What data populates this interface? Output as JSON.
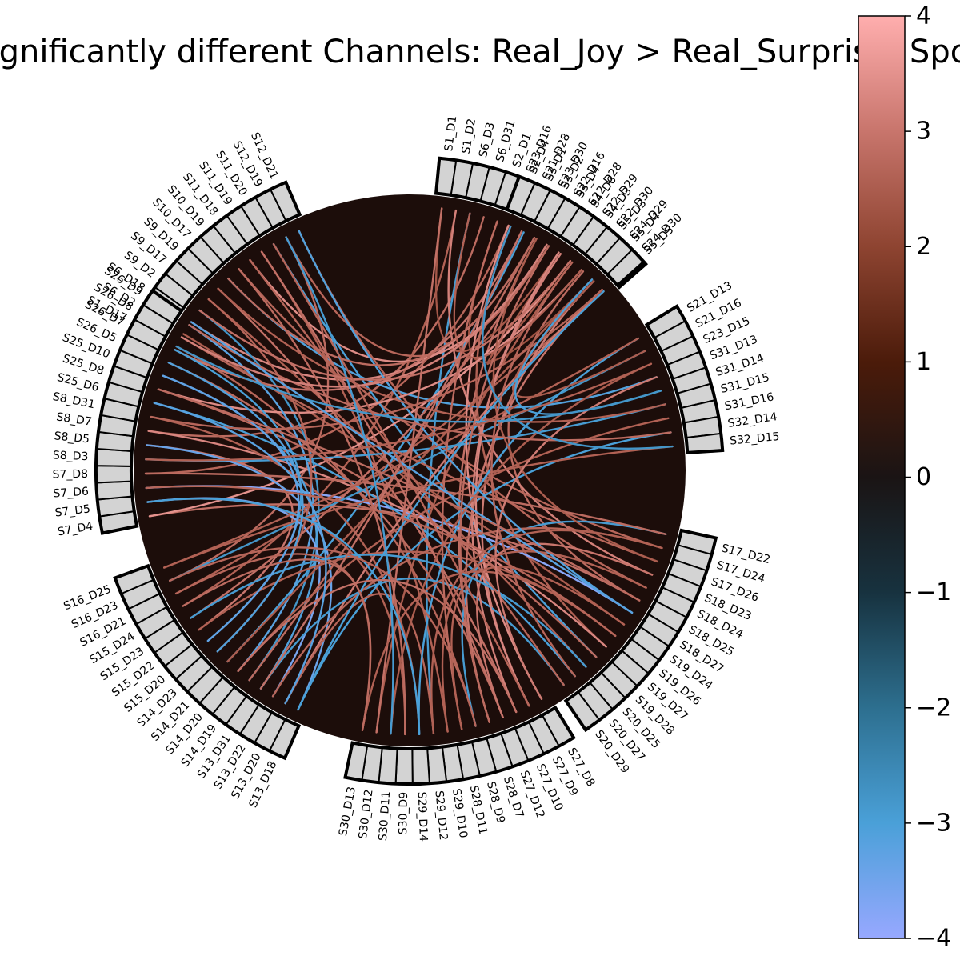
{
  "chart_data": {
    "type": "chord",
    "title": "Significantly different Channels: Real_Joy > Real_Surprise, Spot",
    "colorbar": {
      "min": -4,
      "max": 4,
      "ticks": [
        4,
        3,
        2,
        1,
        0,
        -1,
        -2,
        -3,
        -4
      ],
      "tick_labels": [
        "4",
        "3",
        "2",
        "1",
        "0",
        "−1",
        "−2",
        "−3",
        "−4"
      ],
      "colors": [
        {
          "v": -4,
          "c": "#97a8ff"
        },
        {
          "v": -3,
          "c": "#4aa0d8"
        },
        {
          "v": -2,
          "c": "#2d6f8f"
        },
        {
          "v": -1,
          "c": "#17323f"
        },
        {
          "v": 0,
          "c": "#1a1414"
        },
        {
          "v": 1,
          "c": "#4b1b0a"
        },
        {
          "v": 2,
          "c": "#8e4431"
        },
        {
          "v": 3,
          "c": "#c8756c"
        },
        {
          "v": 4,
          "c": "#ffaeae"
        }
      ]
    },
    "colors": {
      "disk": "#1c0d0a",
      "node_fill": "#d3d3d3",
      "node_edge": "#000000",
      "background": "#ffffff"
    },
    "groups": [
      {
        "start_deg": 83,
        "nodes": [
          "S1_D1",
          "S1_D2",
          "S6_D3",
          "S6_D31",
          "S2_D1",
          "S2_D4",
          "S3_D1",
          "S3_D2",
          "S3_D4",
          "S4_D6",
          "S4_D3",
          "S5_D3",
          "S5_D4",
          "S5_D5"
        ]
      },
      {
        "start_deg": 152,
        "nodes": [
          "S1_D17",
          "S6_D2",
          "S6_D18",
          "S9_D2",
          "S9_D17",
          "S9_D19",
          "S10_D17",
          "S10_D19",
          "S11_D18",
          "S11_D19",
          "S11_D20",
          "S12_D19",
          "S12_D21"
        ]
      },
      {
        "start_deg": 190,
        "nodes": [
          "S7_D4",
          "S7_D5",
          "S7_D6",
          "S7_D8",
          "S8_D3",
          "S8_D5",
          "S8_D7",
          "S8_D31",
          "S25_D6",
          "S25_D8",
          "S25_D10",
          "S26_D5",
          "S26_D7",
          "S26_D8",
          "S26_D9"
        ]
      },
      {
        "start_deg": 245,
        "nodes": [
          "S13_D18",
          "S13_D20",
          "S13_D22",
          "S13_D31",
          "S14_D19",
          "S14_D20",
          "S14_D21",
          "S14_D23",
          "S15_D20",
          "S15_D22",
          "S15_D23",
          "S15_D24",
          "S16_D21",
          "S16_D23",
          "S16_D25"
        ]
      },
      {
        "start_deg": 300,
        "nodes": [
          "S27_D8",
          "S27_D9",
          "S27_D10",
          "S27_D12",
          "S28_D7",
          "S28_D9",
          "S28_D11",
          "S29_D10",
          "S29_D12",
          "S29_D14",
          "S30_D9",
          "S30_D11",
          "S30_D12",
          "S30_D13"
        ]
      },
      {
        "start_deg": 346,
        "nodes": [
          "S17_D22",
          "S17_D24",
          "S17_D26",
          "S18_D23",
          "S18_D24",
          "S18_D25",
          "S18_D27",
          "S19_D24",
          "S19_D26",
          "S19_D27",
          "S19_D28",
          "S20_D25",
          "S20_D27",
          "S20_D29"
        ]
      },
      {
        "start_deg": 30,
        "nodes": [
          "S21_D13",
          "S21_D16",
          "S23_D15",
          "S31_D13",
          "S31_D14",
          "S31_D15",
          "S31_D16",
          "S32_D14",
          "S32_D15"
        ]
      },
      {
        "start_deg": 68,
        "nodes": [
          "S23_D16",
          "S21_D28",
          "S23_D30",
          "S22_D16",
          "S22_D28",
          "S22_D29",
          "S22_D30",
          "S24_D29",
          "S24_D30"
        ]
      }
    ],
    "edges": [
      {
        "a": "S5_D5",
        "b": "S16_D21",
        "v": 2.6
      },
      {
        "a": "S5_D4",
        "b": "S27_D9",
        "v": 3.1
      },
      {
        "a": "S5_D3",
        "b": "S18_D25",
        "v": 2.8
      },
      {
        "a": "S4_D3",
        "b": "S30_D12",
        "v": 2.5
      },
      {
        "a": "S4_D6",
        "b": "S22_D29",
        "v": 2.4
      },
      {
        "a": "S3_D4",
        "b": "S12_D19",
        "v": 2.7
      },
      {
        "a": "S3_D2",
        "b": "S28_D7",
        "v": 2.9
      },
      {
        "a": "S3_D1",
        "b": "S14_D21",
        "v": -3.0
      },
      {
        "a": "S2_D4",
        "b": "S19_D27",
        "v": 2.6
      },
      {
        "a": "S2_D1",
        "b": "S24_D29",
        "v": 2.3
      },
      {
        "a": "S6_D31",
        "b": "S8_D7",
        "v": 2.8
      },
      {
        "a": "S6_D3",
        "b": "S29_D12",
        "v": -2.9
      },
      {
        "a": "S1_D2",
        "b": "S15_D24",
        "v": 2.6
      },
      {
        "a": "S1_D1",
        "b": "S22_D28",
        "v": 2.4
      },
      {
        "a": "S1_D2",
        "b": "S18_D23",
        "v": 3.2
      },
      {
        "a": "S1_D17",
        "b": "S28_D9",
        "v": 2.7
      },
      {
        "a": "S6_D2",
        "b": "S19_D24",
        "v": 2.5
      },
      {
        "a": "S6_D18",
        "b": "S23_D30",
        "v": 3.3
      },
      {
        "a": "S9_D2",
        "b": "S14_D19",
        "v": -2.8
      },
      {
        "a": "S9_D17",
        "b": "S20_D25",
        "v": 2.6
      },
      {
        "a": "S9_D19",
        "b": "S27_D10",
        "v": 2.9
      },
      {
        "a": "S10_D17",
        "b": "S31_D13",
        "v": -3.1
      },
      {
        "a": "S10_D19",
        "b": "S17_D24",
        "v": 2.7
      },
      {
        "a": "S11_D18",
        "b": "S22_D16",
        "v": 3.4
      },
      {
        "a": "S11_D19",
        "b": "S29_D10",
        "v": 2.6
      },
      {
        "a": "S11_D20",
        "b": "S19_D28",
        "v": -3.0
      },
      {
        "a": "S12_D19",
        "b": "S16_D23",
        "v": 2.8
      },
      {
        "a": "S12_D21",
        "b": "S18_D24",
        "v": 2.7
      },
      {
        "a": "S7_D4",
        "b": "S18_D25",
        "v": 2.9
      },
      {
        "a": "S7_D4",
        "b": "S22_D29",
        "v": 3.5
      },
      {
        "a": "S7_D5",
        "b": "S30_D9",
        "v": 2.6
      },
      {
        "a": "S7_D6",
        "b": "S18_D27",
        "v": -3.8
      },
      {
        "a": "S7_D8",
        "b": "S23_D16",
        "v": 2.7
      },
      {
        "a": "S8_D3",
        "b": "S31_D15",
        "v": -2.9
      },
      {
        "a": "S8_D5",
        "b": "S15_D22",
        "v": 3.0
      },
      {
        "a": "S8_D7",
        "b": "S19_D27",
        "v": 3.3
      },
      {
        "a": "S8_D31",
        "b": "S29_D14",
        "v": 2.6
      },
      {
        "a": "S25_D6",
        "b": "S20_D27",
        "v": -3.0
      },
      {
        "a": "S25_D8",
        "b": "S22_D30",
        "v": 3.4
      },
      {
        "a": "S25_D10",
        "b": "S13_D31",
        "v": -3.1
      },
      {
        "a": "S26_D5",
        "b": "S27_D12",
        "v": 2.8
      },
      {
        "a": "S26_D7",
        "b": "S21_D28",
        "v": 3.0
      },
      {
        "a": "S26_D8",
        "b": "S17_D26",
        "v": 2.7
      },
      {
        "a": "S26_D9",
        "b": "S14_D20",
        "v": -3.2
      },
      {
        "a": "S13_D18",
        "b": "S32_D14",
        "v": -3.0
      },
      {
        "a": "S13_D18",
        "b": "S8_D5",
        "v": -3.4
      },
      {
        "a": "S13_D20",
        "b": "S24_D30",
        "v": 3.1
      },
      {
        "a": "S13_D22",
        "b": "S7_D5",
        "v": -3.6
      },
      {
        "a": "S13_D31",
        "b": "S20_D29",
        "v": -2.9
      },
      {
        "a": "S14_D19",
        "b": "S23_D30",
        "v": 2.8
      },
      {
        "a": "S14_D20",
        "b": "S31_D16",
        "v": 2.6
      },
      {
        "a": "S14_D21",
        "b": "S24_D29",
        "v": 2.5
      },
      {
        "a": "S14_D23",
        "b": "S9_D17",
        "v": 2.7
      },
      {
        "a": "S15_D20",
        "b": "S26_D7",
        "v": -3.0
      },
      {
        "a": "S15_D22",
        "b": "S19_D26",
        "v": 2.6
      },
      {
        "a": "S15_D23",
        "b": "S22_D16",
        "v": 2.9
      },
      {
        "a": "S16_D21",
        "b": "S30_D13",
        "v": 2.7
      },
      {
        "a": "S16_D23",
        "b": "S21_D16",
        "v": -2.8
      },
      {
        "a": "S16_D25",
        "b": "S32_D15",
        "v": 2.6
      },
      {
        "a": "S27_D8",
        "b": "S23_D16",
        "v": 3.4
      },
      {
        "a": "S27_D9",
        "b": "S22_D28",
        "v": 3.3
      },
      {
        "a": "S27_D10",
        "b": "S4_D6",
        "v": 3.2
      },
      {
        "a": "S27_D12",
        "b": "S11_D19",
        "v": 2.9
      },
      {
        "a": "S28_D7",
        "b": "S24_D30",
        "v": 3.0
      },
      {
        "a": "S28_D9",
        "b": "S17_D22",
        "v": -2.9
      },
      {
        "a": "S28_D11",
        "b": "S2_D1",
        "v": 2.8
      },
      {
        "a": "S29_D10",
        "b": "S18_D24",
        "v": 2.6
      },
      {
        "a": "S29_D12",
        "b": "S13_D20",
        "v": 2.7
      },
      {
        "a": "S29_D14",
        "b": "S21_D13",
        "v": -3.0
      },
      {
        "a": "S30_D9",
        "b": "S10_D19",
        "v": 2.8
      },
      {
        "a": "S30_D11",
        "b": "S23_D15",
        "v": 2.5
      },
      {
        "a": "S30_D12",
        "b": "S1_D1",
        "v": 2.9
      },
      {
        "a": "S30_D13",
        "b": "S19_D26",
        "v": 2.6
      },
      {
        "a": "S17_D22",
        "b": "S7_D8",
        "v": 2.8
      },
      {
        "a": "S17_D24",
        "b": "S13_D22",
        "v": 2.7
      },
      {
        "a": "S17_D26",
        "b": "S3_D2",
        "v": 2.5
      },
      {
        "a": "S18_D23",
        "b": "S27_D12",
        "v": 3.0
      },
      {
        "a": "S18_D27",
        "b": "S12_D21",
        "v": -3.1
      },
      {
        "a": "S19_D24",
        "b": "S28_D11",
        "v": 2.6
      },
      {
        "a": "S19_D28",
        "b": "S25_D8",
        "v": 2.8
      },
      {
        "a": "S20_D25",
        "b": "S15_D23",
        "v": -2.9
      },
      {
        "a": "S20_D29",
        "b": "S11_D18",
        "v": 2.7
      },
      {
        "a": "S21_D13",
        "b": "S16_D25",
        "v": 2.6
      },
      {
        "a": "S21_D16",
        "b": "S5_D4",
        "v": 2.5
      },
      {
        "a": "S31_D13",
        "b": "S27_D8",
        "v": 3.1
      },
      {
        "a": "S31_D15",
        "b": "S9_D19",
        "v": 2.6
      },
      {
        "a": "S32_D14",
        "b": "S26_D9",
        "v": 2.8
      },
      {
        "a": "S21_D28",
        "b": "S13_D31",
        "v": 2.9
      },
      {
        "a": "S22_D30",
        "b": "S6_D3",
        "v": 2.6
      },
      {
        "a": "S24_D30",
        "b": "S8_D31",
        "v": 2.7
      },
      {
        "a": "S24_D29",
        "b": "S31_D14",
        "v": -3.0
      },
      {
        "a": "S22_D16",
        "b": "S26_D8",
        "v": 3.2
      },
      {
        "a": "S23_D30",
        "b": "S10_D17",
        "v": 2.8
      },
      {
        "a": "S1_D17",
        "b": "S31_D14",
        "v": -2.8
      },
      {
        "a": "S6_D18",
        "b": "S18_D27",
        "v": -3.2
      },
      {
        "a": "S12_D19",
        "b": "S30_D11",
        "v": -2.9
      },
      {
        "a": "S7_D5",
        "b": "S29_D14",
        "v": -3.0
      },
      {
        "a": "S25_D10",
        "b": "S15_D20",
        "v": -3.3
      },
      {
        "a": "S26_D5",
        "b": "S14_D23",
        "v": -3.1
      },
      {
        "a": "S5_D5",
        "b": "S13_D18",
        "v": -3.0
      },
      {
        "a": "S4_D3",
        "b": "S20_D27",
        "v": 2.7
      },
      {
        "a": "S3_D4",
        "b": "S28_D7",
        "v": 2.8
      },
      {
        "a": "S2_D4",
        "b": "S32_D15",
        "v": -2.8
      },
      {
        "a": "S9_D2",
        "b": "S22_D29",
        "v": 2.9
      },
      {
        "a": "S11_D20",
        "b": "S27_D9",
        "v": 2.7
      },
      {
        "a": "S8_D3",
        "b": "S23_D15",
        "v": 2.6
      },
      {
        "a": "S16_D23",
        "b": "S28_D9",
        "v": 2.7
      },
      {
        "a": "S15_D24",
        "b": "S30_D13",
        "v": 2.8
      },
      {
        "a": "S14_D20",
        "b": "S27_D10",
        "v": 2.9
      },
      {
        "a": "S13_D20",
        "b": "S25_D6",
        "v": -3.2
      },
      {
        "a": "S17_D24",
        "b": "S29_D12",
        "v": 2.6
      },
      {
        "a": "S18_D25",
        "b": "S25_D8",
        "v": 2.8
      },
      {
        "a": "S19_D26",
        "b": "S7_D6",
        "v": 2.7
      }
    ]
  }
}
